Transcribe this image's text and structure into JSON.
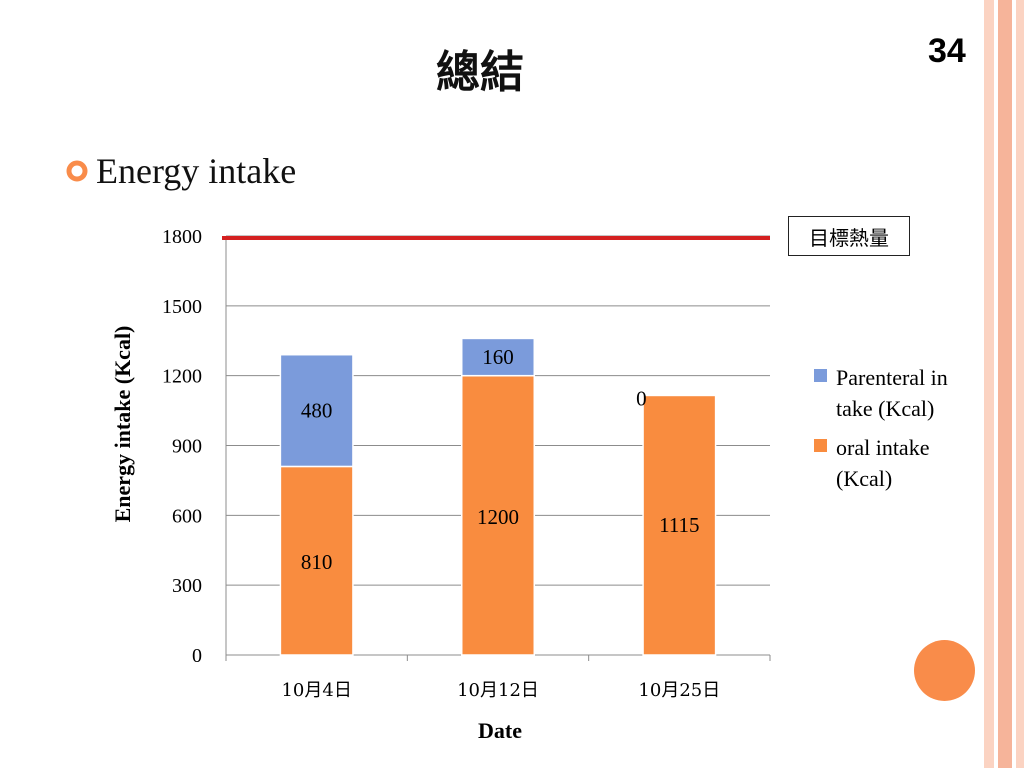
{
  "slide": {
    "title": "總結",
    "number": "34",
    "bullet": "Energy intake",
    "target_label": "目標熱量"
  },
  "colors": {
    "oral": "#f98c3f",
    "parenteral": "#7b9bdb",
    "target_line": "#d42020",
    "accent": "#f98c4a",
    "stripes": [
      "#fbd3c2",
      "#f6b49a",
      "#fbd3c2"
    ]
  },
  "chart_data": {
    "type": "bar",
    "stacked": true,
    "categories": [
      "10月4日",
      "10月12日",
      "10月25日"
    ],
    "series": [
      {
        "name": "oral intake (Kcal)",
        "values": [
          810,
          1200,
          1115
        ]
      },
      {
        "name": "Parenteral intake (Kcal)",
        "values": [
          480,
          160,
          0
        ]
      }
    ],
    "reference_line": {
      "value": 1800,
      "label": "目標熱量"
    },
    "xlabel": "Date",
    "ylabel": "Energy intake (Kcal)",
    "ylim": [
      0,
      1800
    ],
    "yticks": [
      0,
      300,
      600,
      900,
      1200,
      1500,
      1800
    ],
    "grid": true,
    "legend_position": "right"
  }
}
